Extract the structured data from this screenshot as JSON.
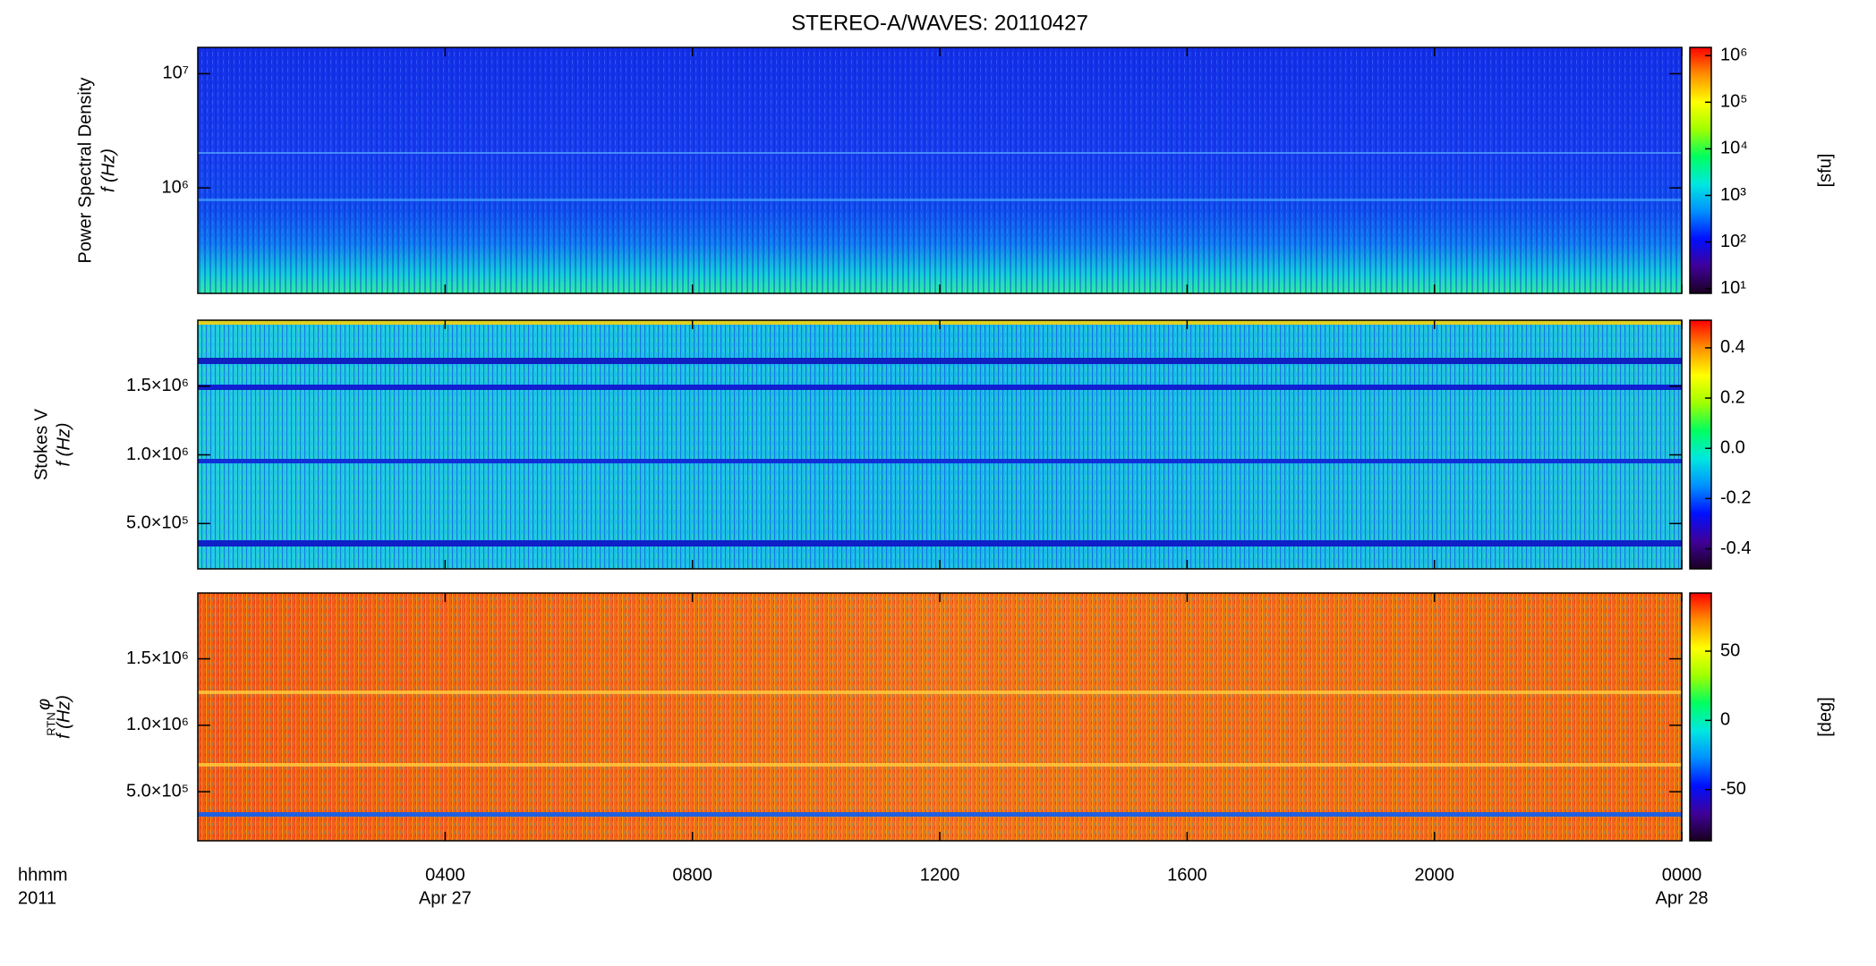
{
  "chart_data": [
    {
      "type": "heatmap",
      "title": "STEREO-A/WAVES: 20110427",
      "ylabel": [
        "Power Spectral Density",
        "f (Hz)"
      ],
      "ylog": true,
      "ylim": [
        119000,
        17000000
      ],
      "yticks": [
        {
          "value": 1000000,
          "label": "10⁶"
        },
        {
          "value": 10000000,
          "label": "10⁷"
        }
      ],
      "clog": true,
      "clim": [
        7.9,
        1500000
      ],
      "cticks": [
        {
          "value": 10,
          "label": "10¹"
        },
        {
          "value": 100,
          "label": "10²"
        },
        {
          "value": 1000,
          "label": "10³"
        },
        {
          "value": 10000,
          "label": "10⁴"
        },
        {
          "value": 100000,
          "label": "10⁵"
        },
        {
          "value": 1000000,
          "label": "10⁶"
        }
      ],
      "clabel": "[sfu]",
      "colormap": [
        "#1a0020",
        "#40009a",
        "#0010ff",
        "#0090ff",
        "#00e8e0",
        "#00ff60",
        "#a0ff00",
        "#ffff00",
        "#ff9000",
        "#ff0000"
      ]
    },
    {
      "type": "heatmap",
      "ylabel": [
        "Stokes V",
        "f (Hz)"
      ],
      "ylog": false,
      "ylim": [
        170000,
        1980000
      ],
      "yticks": [
        {
          "value": 500000,
          "label": "5.0×10⁵"
        },
        {
          "value": 1000000,
          "label": "1.0×10⁶"
        },
        {
          "value": 1500000,
          "label": "1.5×10⁶"
        }
      ],
      "clog": false,
      "clim": [
        -0.48,
        0.51
      ],
      "cticks": [
        -0.4,
        -0.2,
        {
          "value": 0,
          "label": "0.0"
        },
        0.2,
        0.4
      ],
      "colormap": [
        "#1a0020",
        "#40009a",
        "#0010ff",
        "#0090ff",
        "#00e8e0",
        "#00ff60",
        "#a0ff00",
        "#ffff00",
        "#ff9000",
        "#ff0000"
      ]
    },
    {
      "type": "heatmap",
      "ylabel": [
        "φ",
        "f (Hz)"
      ],
      "ylabel_subscript": "RTN",
      "ylog": false,
      "ylim": [
        131000,
        1995000
      ],
      "yticks": [
        {
          "value": 500000,
          "label": "5.0×10⁵"
        },
        {
          "value": 1000000,
          "label": "1.0×10⁶"
        },
        {
          "value": 1500000,
          "label": "1.5×10⁶"
        }
      ],
      "clog": false,
      "clim": [
        -87,
        92
      ],
      "cticks": [
        -50,
        0,
        50
      ],
      "clabel": "[deg]",
      "colormap": [
        "#1a0020",
        "#40009a",
        "#0010ff",
        "#0090ff",
        "#00e8e0",
        "#00ff60",
        "#a0ff00",
        "#ffff00",
        "#ff9000",
        "#ff0000"
      ],
      "xlim": [
        0,
        24
      ],
      "xticks": [
        {
          "value": 4,
          "label": "0400"
        },
        {
          "value": 8,
          "label": "0800"
        },
        {
          "value": 12,
          "label": "1200"
        },
        {
          "value": 16,
          "label": "1600"
        },
        {
          "value": 20,
          "label": "2000"
        },
        {
          "value": 24,
          "label": "0000"
        }
      ],
      "xdate_labels": [
        {
          "value": 4,
          "label": "Apr 27"
        },
        {
          "value": 24,
          "label": "Apr 28"
        }
      ],
      "xaxis_labels": [
        "hhmm",
        "2011"
      ]
    }
  ]
}
